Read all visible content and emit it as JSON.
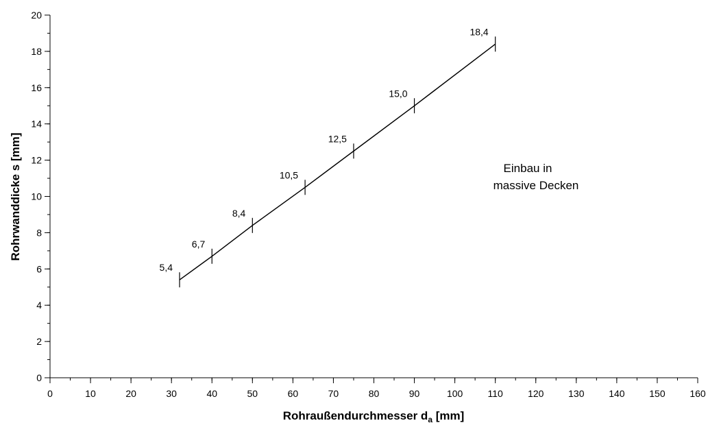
{
  "chart_data": {
    "type": "line",
    "xlabel": "Rohraußendurchmesser d",
    "xlabel_sub": "a",
    "xlabel_unit": " [mm]",
    "ylabel": "Rohrwanddicke s [mm]",
    "xlim": [
      0,
      160
    ],
    "ylim": [
      0,
      20
    ],
    "x_ticks": [
      0,
      10,
      20,
      30,
      40,
      50,
      60,
      70,
      80,
      90,
      100,
      110,
      120,
      130,
      140,
      150,
      160
    ],
    "x_minor_step": 5,
    "y_ticks": [
      0,
      2,
      4,
      6,
      8,
      10,
      12,
      14,
      16,
      18,
      20
    ],
    "y_minor_step": 1,
    "grid": false,
    "series": [
      {
        "x": [
          32,
          40,
          50,
          63,
          75,
          90,
          110
        ],
        "y": [
          5.4,
          6.7,
          8.4,
          10.5,
          12.5,
          15.0,
          18.4
        ],
        "labels": [
          "5,4",
          "6,7",
          "8,4",
          "10,5",
          "12,5",
          "15,0",
          "18,4"
        ],
        "color": "#000000"
      }
    ],
    "annotation": [
      "Einbau in",
      "massive Decken"
    ]
  }
}
